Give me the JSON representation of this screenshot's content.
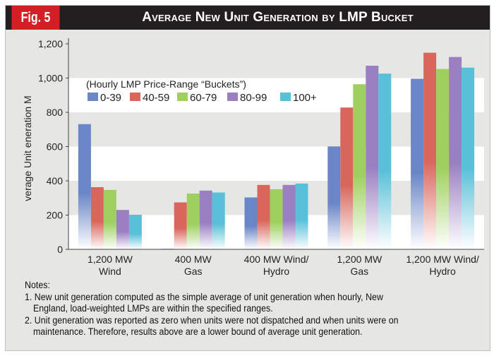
{
  "figure_label": "Fig. 5",
  "chart_data": {
    "type": "bar",
    "title": "Average New Unit Generation by LMP Bucket",
    "xlabel": "",
    "ylabel": "verage Unit  eneration  M",
    "ylim": [
      0,
      1200
    ],
    "yticks": [
      0,
      200,
      400,
      600,
      800,
      1000,
      1200
    ],
    "ytick_labels": [
      "0",
      "200",
      "400",
      "600",
      "800",
      "1,000",
      "1,200"
    ],
    "categories": [
      [
        "1,200 MW",
        "Wind"
      ],
      [
        "400 MW",
        "Gas"
      ],
      [
        "400 MW Wind/",
        "Hydro"
      ],
      [
        "1,200 MW",
        "Gas"
      ],
      [
        "1,200 MW Wind/",
        "Hydro"
      ]
    ],
    "legend_title": "(Hourly LMP Price-Range “Buckets”)",
    "legend_position": "top-left",
    "grid": "alternating horizontal bands",
    "series": [
      {
        "name": "0-39",
        "color": "#6a86c6",
        "values": [
          731,
          3,
          303,
          601,
          996
        ]
      },
      {
        "name": "40-59",
        "color": "#d9665c",
        "values": [
          363,
          274,
          376,
          828,
          1148
        ]
      },
      {
        "name": "60-79",
        "color": "#9fd05f",
        "values": [
          347,
          326,
          351,
          964,
          1053
        ]
      },
      {
        "name": "80-99",
        "color": "#9a7fc1",
        "values": [
          230,
          343,
          376,
          1072,
          1123
        ]
      },
      {
        "name": "100+",
        "color": "#58c0d8",
        "values": [
          202,
          332,
          384,
          1026,
          1061
        ]
      }
    ]
  },
  "notes": {
    "heading": "Notes:",
    "items": [
      [
        "1. New unit generation computed as the simple average of unit generation when hourly, New",
        "England, load-weighted LMPs  are within the specified ranges."
      ],
      [
        "2. Unit generation was reported as zero  when units were not dispatched and when units were on",
        "maintenance. Therefore, results above are a lower bound of average unit generation."
      ]
    ]
  }
}
